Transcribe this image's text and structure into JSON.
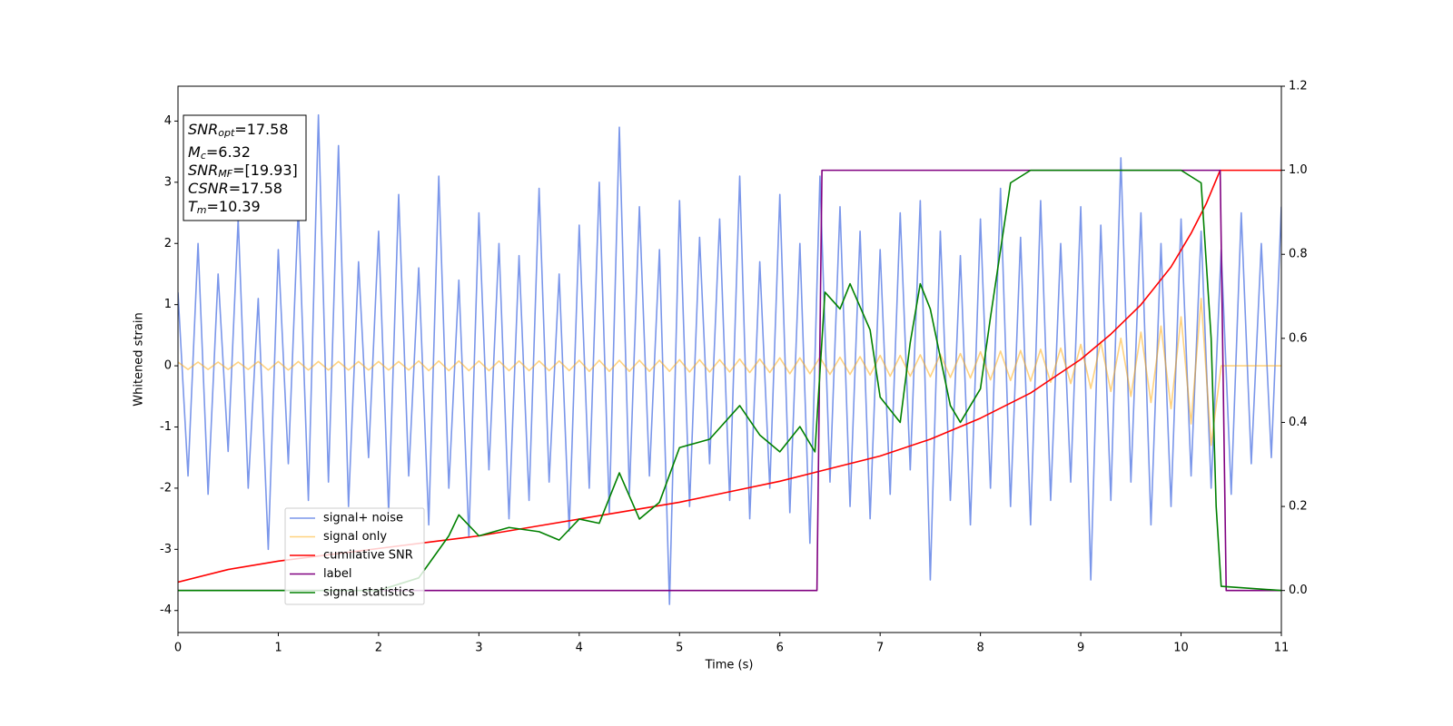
{
  "chart_data": {
    "type": "line",
    "xlabel": "Time (s)",
    "ylabel": "Whitened strain",
    "xlim": [
      0,
      11
    ],
    "ylim": [
      -4.36,
      4.57
    ],
    "y2lim": [
      -0.1,
      1.2
    ],
    "xticks": [
      0,
      1,
      2,
      3,
      4,
      5,
      6,
      7,
      8,
      9,
      10,
      11
    ],
    "yticks": [
      -4,
      -3,
      -2,
      -1,
      0,
      1,
      2,
      3,
      4
    ],
    "y2ticks": [
      {
        "value": 0,
        "label": "0.0"
      },
      {
        "value": 0.2,
        "label": "0.2"
      },
      {
        "value": 0.4,
        "label": "0.4"
      },
      {
        "value": 0.6,
        "label": "0.6"
      },
      {
        "value": 0.8,
        "label": "0.8"
      },
      {
        "value": 1.0,
        "label": "1.0"
      },
      {
        "value": 1.2,
        "label": "1.2"
      }
    ],
    "legend_loc": "lower left",
    "annotations": [
      {
        "text": "SNR",
        "sub": "opt",
        "rest": "=17.58"
      },
      {
        "text": "M",
        "sub": "c",
        "rest": "=6.32"
      },
      {
        "text": "SNR",
        "sub": "MF",
        "rest": "=[19.93]"
      },
      {
        "text": "CSNR",
        "sub": null,
        "rest": "=17.58"
      },
      {
        "text": "T",
        "sub": "m",
        "rest": "=10.39"
      }
    ],
    "series": [
      {
        "name": "signal+ noise",
        "color": "#4169e1",
        "opacity": 0.7,
        "axis": "y",
        "x": [
          0,
          0.1,
          0.2,
          0.3,
          0.4,
          0.5,
          0.6,
          0.7,
          0.8,
          0.9,
          1,
          1.1,
          1.2,
          1.3,
          1.4,
          1.5,
          1.6,
          1.7,
          1.8,
          1.9,
          2,
          2.1,
          2.2,
          2.3,
          2.4,
          2.5,
          2.6,
          2.7,
          2.8,
          2.9,
          3,
          3.1,
          3.2,
          3.3,
          3.4,
          3.5,
          3.6,
          3.7,
          3.8,
          3.9,
          4,
          4.1,
          4.2,
          4.3,
          4.4,
          4.5,
          4.6,
          4.7,
          4.8,
          4.9,
          5,
          5.1,
          5.2,
          5.3,
          5.4,
          5.5,
          5.6,
          5.7,
          5.8,
          5.9,
          6,
          6.1,
          6.2,
          6.3,
          6.4,
          6.5,
          6.6,
          6.7,
          6.8,
          6.9,
          7,
          7.1,
          7.2,
          7.3,
          7.4,
          7.5,
          7.6,
          7.7,
          7.8,
          7.9,
          8,
          8.1,
          8.2,
          8.3,
          8.4,
          8.5,
          8.6,
          8.7,
          8.8,
          8.9,
          9,
          9.1,
          9.2,
          9.3,
          9.4,
          9.5,
          9.6,
          9.7,
          9.8,
          9.9,
          10,
          10.1,
          10.2,
          10.3,
          10.4,
          10.5,
          10.6,
          10.7,
          10.8,
          10.9,
          11
        ],
        "values": [
          1.2,
          -1.8,
          2.0,
          -2.1,
          1.5,
          -1.4,
          2.4,
          -2.0,
          1.1,
          -3.0,
          1.9,
          -1.6,
          2.6,
          -2.2,
          4.1,
          -1.9,
          3.6,
          -2.3,
          1.7,
          -1.5,
          2.2,
          -2.4,
          2.8,
          -1.8,
          1.6,
          -2.6,
          3.1,
          -2.0,
          1.4,
          -2.8,
          2.5,
          -1.7,
          2.0,
          -2.5,
          1.8,
          -2.2,
          2.9,
          -1.9,
          1.5,
          -2.7,
          2.3,
          -2.0,
          3.0,
          -2.4,
          3.9,
          -2.1,
          2.6,
          -1.8,
          1.9,
          -3.9,
          2.7,
          -2.3,
          2.1,
          -1.6,
          2.4,
          -2.2,
          3.1,
          -2.5,
          1.7,
          -2.0,
          2.8,
          -2.4,
          2.0,
          -2.9,
          3.1,
          -1.9,
          2.6,
          -2.3,
          2.2,
          -2.5,
          1.9,
          -2.1,
          2.5,
          -1.7,
          2.7,
          -3.5,
          2.2,
          -2.2,
          1.8,
          -2.6,
          2.4,
          -2.0,
          2.9,
          -2.3,
          2.1,
          -2.6,
          2.7,
          -2.2,
          2.0,
          -1.9,
          2.6,
          -3.5,
          2.3,
          -2.2,
          3.4,
          -1.9,
          2.5,
          -2.6,
          2.0,
          -2.3,
          2.4,
          -1.8,
          2.2,
          -2.0,
          1.9,
          -2.1,
          2.5,
          -1.6,
          2.0,
          -1.5,
          2.6
        ]
      },
      {
        "name": "signal only",
        "color": "#ffa500",
        "opacity": 0.5,
        "axis": "y",
        "x": [
          0,
          0.1,
          0.2,
          0.3,
          0.4,
          0.5,
          0.6,
          0.7,
          0.8,
          0.9,
          1,
          1.1,
          1.2,
          1.3,
          1.4,
          1.5,
          1.6,
          1.7,
          1.8,
          1.9,
          2,
          2.1,
          2.2,
          2.3,
          2.4,
          2.5,
          2.6,
          2.7,
          2.8,
          2.9,
          3,
          3.1,
          3.2,
          3.3,
          3.4,
          3.5,
          3.6,
          3.7,
          3.8,
          3.9,
          4,
          4.1,
          4.2,
          4.3,
          4.4,
          4.5,
          4.6,
          4.7,
          4.8,
          4.9,
          5,
          5.1,
          5.2,
          5.3,
          5.4,
          5.5,
          5.6,
          5.7,
          5.8,
          5.9,
          6,
          6.1,
          6.2,
          6.3,
          6.4,
          6.5,
          6.6,
          6.7,
          6.8,
          6.9,
          7,
          7.1,
          7.2,
          7.3,
          7.4,
          7.5,
          7.6,
          7.7,
          7.8,
          7.9,
          8,
          8.1,
          8.2,
          8.3,
          8.4,
          8.5,
          8.6,
          8.7,
          8.8,
          8.9,
          9,
          9.1,
          9.2,
          9.3,
          9.4,
          9.5,
          9.6,
          9.7,
          9.8,
          9.9,
          10,
          10.1,
          10.2,
          10.3,
          10.4,
          10.5,
          10.6,
          10.7,
          10.8,
          10.9,
          11
        ],
        "values": [
          0.06,
          -0.06,
          0.06,
          -0.06,
          0.06,
          -0.06,
          0.06,
          -0.06,
          0.07,
          -0.07,
          0.07,
          -0.07,
          0.07,
          -0.07,
          0.07,
          -0.07,
          0.07,
          -0.07,
          0.07,
          -0.07,
          0.07,
          -0.07,
          0.07,
          -0.07,
          0.08,
          -0.08,
          0.08,
          -0.08,
          0.08,
          -0.08,
          0.08,
          -0.08,
          0.08,
          -0.08,
          0.08,
          -0.08,
          0.08,
          -0.08,
          0.08,
          -0.08,
          0.09,
          -0.09,
          0.09,
          -0.09,
          0.09,
          -0.09,
          0.09,
          -0.09,
          0.09,
          -0.09,
          0.1,
          -0.1,
          0.1,
          -0.1,
          0.1,
          -0.1,
          0.11,
          -0.11,
          0.11,
          -0.11,
          0.13,
          -0.13,
          0.13,
          -0.13,
          0.14,
          -0.14,
          0.14,
          -0.14,
          0.15,
          -0.15,
          0.17,
          -0.17,
          0.17,
          -0.17,
          0.18,
          -0.18,
          0.19,
          -0.19,
          0.2,
          -0.2,
          0.23,
          -0.23,
          0.24,
          -0.24,
          0.25,
          -0.25,
          0.27,
          -0.27,
          0.29,
          -0.29,
          0.35,
          -0.37,
          0.39,
          -0.42,
          0.45,
          -0.5,
          0.55,
          -0.6,
          0.65,
          -0.7,
          0.8,
          -0.95,
          1.1,
          -1.3,
          0,
          0,
          0,
          0,
          0,
          0,
          0
        ]
      },
      {
        "name": "cumilative SNR",
        "color": "#ff0000",
        "opacity": 1,
        "axis": "y2",
        "x": [
          0,
          0.5,
          1,
          1.5,
          2,
          2.5,
          3,
          3.5,
          4,
          4.5,
          5,
          5.5,
          6,
          6.5,
          7,
          7.5,
          8,
          8.5,
          9,
          9.3,
          9.6,
          9.9,
          10.1,
          10.25,
          10.39,
          11
        ],
        "values": [
          0.02,
          0.05,
          0.07,
          0.085,
          0.1,
          0.115,
          0.13,
          0.15,
          0.17,
          0.19,
          0.21,
          0.235,
          0.26,
          0.29,
          0.32,
          0.36,
          0.41,
          0.47,
          0.55,
          0.61,
          0.68,
          0.77,
          0.85,
          0.92,
          1.0,
          1.0
        ]
      },
      {
        "name": "label",
        "color": "#800080",
        "opacity": 1,
        "axis": "y2",
        "x": [
          0,
          6.37,
          6.42,
          10.39,
          10.45,
          11
        ],
        "values": [
          0,
          0,
          1,
          1,
          0,
          0
        ]
      },
      {
        "name": "signal statistics",
        "color": "#008000",
        "opacity": 1,
        "axis": "y2",
        "x": [
          0,
          2,
          2.4,
          2.7,
          2.8,
          3,
          3.3,
          3.6,
          3.8,
          4,
          4.2,
          4.4,
          4.6,
          4.8,
          5,
          5.3,
          5.6,
          5.8,
          6,
          6.2,
          6.35,
          6.45,
          6.6,
          6.7,
          6.9,
          7,
          7.2,
          7.3,
          7.4,
          7.5,
          7.7,
          7.8,
          7.9,
          8,
          8.1,
          8.3,
          8.5,
          10,
          10.2,
          10.3,
          10.35,
          10.4,
          11
        ],
        "values": [
          0,
          0,
          0.03,
          0.13,
          0.18,
          0.13,
          0.15,
          0.14,
          0.12,
          0.17,
          0.16,
          0.28,
          0.17,
          0.21,
          0.34,
          0.36,
          0.44,
          0.37,
          0.33,
          0.39,
          0.33,
          0.71,
          0.67,
          0.73,
          0.62,
          0.46,
          0.4,
          0.59,
          0.73,
          0.67,
          0.44,
          0.4,
          0.44,
          0.48,
          0.65,
          0.97,
          1.0,
          1.0,
          0.97,
          0.6,
          0.2,
          0.01,
          0
        ]
      }
    ]
  }
}
